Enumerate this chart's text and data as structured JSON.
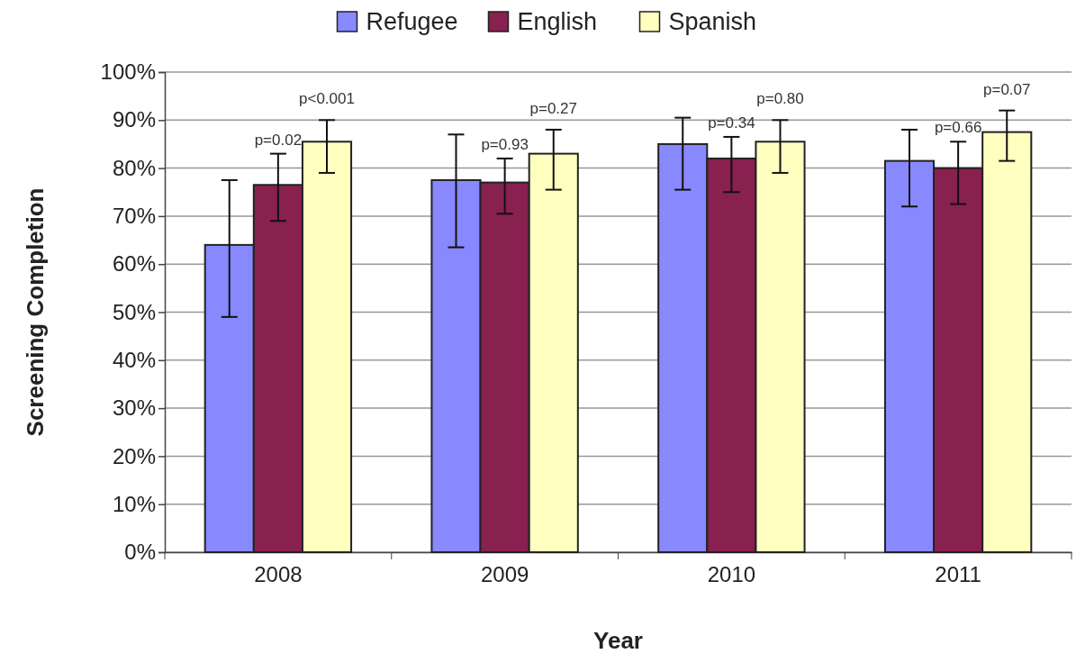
{
  "chart_data": {
    "type": "bar",
    "xlabel": "Year",
    "ylabel": "Screening Completion",
    "categories": [
      "2008",
      "2009",
      "2010",
      "2011"
    ],
    "series": [
      {
        "name": "Refugee",
        "color": "#8888ff",
        "values": [
          64,
          77.5,
          85,
          81.5
        ],
        "errors": [
          [
            49,
            77.5
          ],
          [
            63.5,
            87
          ],
          [
            75.5,
            90.5
          ],
          [
            72,
            88
          ]
        ]
      },
      {
        "name": "English",
        "color": "#882050",
        "values": [
          76.5,
          77,
          82,
          80
        ],
        "errors": [
          [
            69,
            83
          ],
          [
            70.5,
            82
          ],
          [
            75,
            86.5
          ],
          [
            72.5,
            85.5
          ]
        ]
      },
      {
        "name": "Spanish",
        "color": "#ffffc0",
        "values": [
          85.5,
          83,
          85.5,
          87.5
        ],
        "errors": [
          [
            79,
            90
          ],
          [
            75.5,
            88
          ],
          [
            79,
            90
          ],
          [
            81.5,
            92
          ]
        ]
      }
    ],
    "annotations": [
      "p=0.02",
      "p<0.001",
      "p=0.93",
      "p=0.27",
      "p=0.34",
      "p=0.80",
      "p=0.66",
      "p=0.07"
    ],
    "ylim": [
      0,
      100
    ],
    "yticks": [
      {
        "value": 0,
        "label": "0%"
      },
      {
        "value": 10,
        "label": "10%"
      },
      {
        "value": 20,
        "label": "20%"
      },
      {
        "value": 30,
        "label": "30%"
      },
      {
        "value": 40,
        "label": "40%"
      },
      {
        "value": 50,
        "label": "50%"
      },
      {
        "value": 60,
        "label": "60%"
      },
      {
        "value": 70,
        "label": "70%"
      },
      {
        "value": 80,
        "label": "80%"
      },
      {
        "value": 90,
        "label": "90%"
      },
      {
        "value": 100,
        "label": "100%"
      }
    ],
    "grid": "y",
    "legend": "top"
  }
}
